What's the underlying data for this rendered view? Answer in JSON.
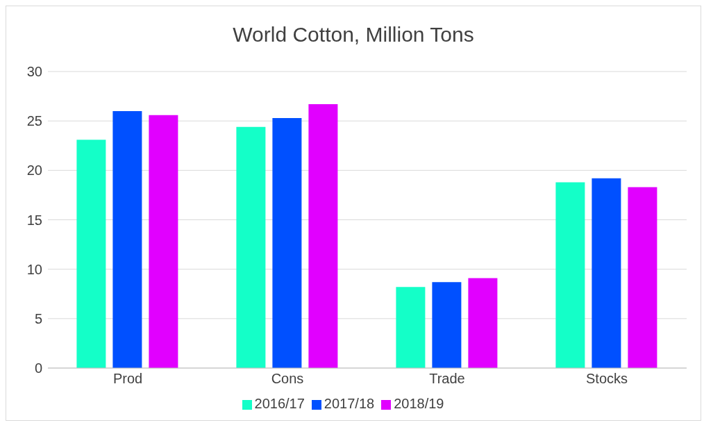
{
  "chart_data": {
    "type": "bar",
    "title": "World Cotton, Million Tons",
    "categories": [
      "Prod",
      "Cons",
      "Trade",
      "Stocks"
    ],
    "series": [
      {
        "name": "2016/17",
        "color": "#14ffc8",
        "values": [
          23.1,
          24.4,
          8.2,
          18.8
        ]
      },
      {
        "name": "2017/18",
        "color": "#0050ff",
        "values": [
          26.0,
          25.3,
          8.7,
          19.2
        ]
      },
      {
        "name": "2018/19",
        "color": "#e100ff",
        "values": [
          25.6,
          26.7,
          9.1,
          18.3
        ]
      }
    ],
    "ylim": [
      0,
      30
    ],
    "yticks": [
      0,
      5,
      10,
      15,
      20,
      25,
      30
    ],
    "grid": "y",
    "legend": "bottom"
  }
}
